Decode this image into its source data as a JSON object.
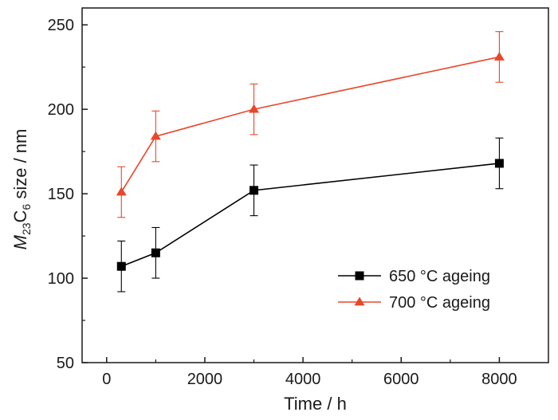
{
  "chart_data": {
    "type": "line",
    "xlabel": "Time / h",
    "ylabel": {
      "italic": "M",
      "sub1": "23",
      "main": "C",
      "sub2": "6",
      "rest": " size / nm"
    },
    "xlim": [
      -500,
      9000
    ],
    "ylim": [
      50,
      260
    ],
    "xticks": [
      0,
      2000,
      4000,
      6000,
      8000
    ],
    "yticks": [
      50,
      100,
      150,
      200,
      250
    ],
    "grid": false,
    "legend_position": "bottom-right",
    "series": [
      {
        "name": "650 °C ageing",
        "color": "#000000",
        "marker": "square",
        "x": [
          300,
          1000,
          3000,
          8000
        ],
        "y": [
          107,
          115,
          152,
          168
        ],
        "err": [
          15,
          15,
          15,
          15
        ]
      },
      {
        "name": "700 °C ageing",
        "color": "#e8472b",
        "marker": "triangle",
        "x": [
          300,
          1000,
          3000,
          8000
        ],
        "y": [
          151,
          184,
          200,
          231
        ],
        "err": [
          15,
          15,
          15,
          15
        ]
      }
    ]
  }
}
